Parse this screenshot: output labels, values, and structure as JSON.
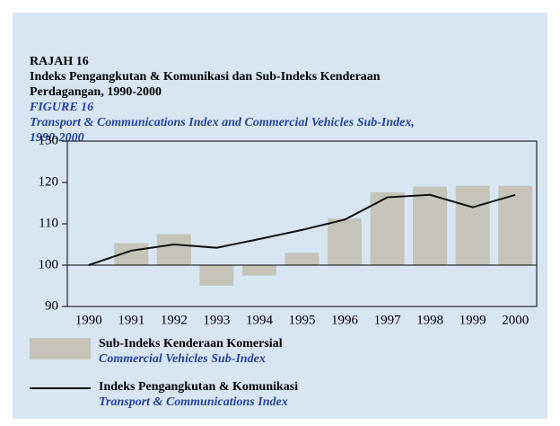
{
  "chart_data": {
    "type": "bar_line",
    "title": [
      "RAJAH 16",
      "Indeks Pengangkutan & Komunikasi dan Sub-Indeks Kenderaan",
      "Perdagangan, 1990-2000"
    ],
    "subtitle": [
      "FIGURE 16",
      "Transport & Communications Index and Commercial Vehicles Sub-Index,",
      "1990-2000"
    ],
    "categories": [
      "1990",
      "1991",
      "1992",
      "1993",
      "1994",
      "1995",
      "1996",
      "1997",
      "1998",
      "1999",
      "2000"
    ],
    "series": [
      {
        "name": "Sub-Indeks Kenderaan Komersial",
        "name_translation": "Commercial Vehicles Sub-Index",
        "kind": "bar",
        "color": "#c6c4b9",
        "values": [
          100,
          105.3,
          107.5,
          95,
          97.5,
          103,
          111.3,
          117.6,
          119,
          119.2,
          119.2
        ]
      },
      {
        "name": "Indeks Pengangkutan & Komunikasi",
        "name_translation": "Transport & Communications Index",
        "kind": "line",
        "color": "#111111",
        "values": [
          100,
          103.5,
          105,
          104.2,
          106.3,
          108.5,
          111,
          116.4,
          117,
          114,
          117
        ]
      }
    ],
    "baseline": 100,
    "ylim": [
      90,
      130
    ],
    "yticks": [
      90,
      100,
      110,
      120,
      130
    ],
    "grid": false,
    "legend": "bottom-left"
  }
}
